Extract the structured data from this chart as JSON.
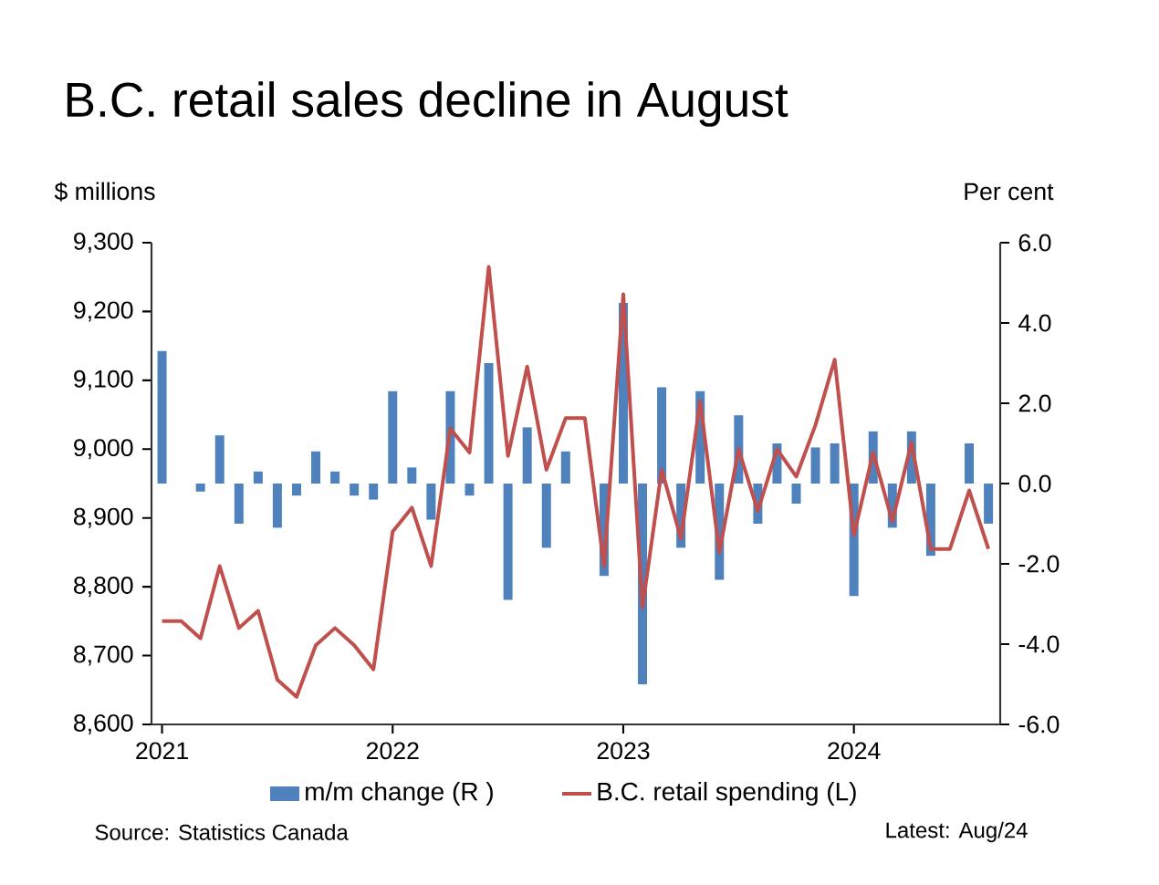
{
  "chart_data": {
    "type": "line",
    "title": "B.C. retail sales decline in August",
    "ylabel": "$ millions",
    "y2label": "Per cent",
    "annotations": [
      "Source: Statistics Canada",
      "Latest: Aug/24"
    ],
    "x": [
      "2021-01",
      "2021-02",
      "2021-03",
      "2021-04",
      "2021-05",
      "2021-06",
      "2021-07",
      "2021-08",
      "2021-09",
      "2021-10",
      "2021-11",
      "2021-12",
      "2022-01",
      "2022-02",
      "2022-03",
      "2022-04",
      "2022-05",
      "2022-06",
      "2022-07",
      "2022-08",
      "2022-09",
      "2022-10",
      "2022-11",
      "2022-12",
      "2023-01",
      "2023-02",
      "2023-03",
      "2023-04",
      "2023-05",
      "2023-06",
      "2023-07",
      "2023-08",
      "2023-09",
      "2023-10",
      "2023-11",
      "2023-12",
      "2024-01",
      "2024-02",
      "2024-03",
      "2024-04",
      "2024-05",
      "2024-06",
      "2024-07",
      "2024-08"
    ],
    "series": [
      {
        "name": "m/m change (R )",
        "type": "bar",
        "axis": "y2",
        "color": "#4f81bd",
        "values": [
          3.3,
          0.0,
          -0.2,
          1.2,
          -1.0,
          0.3,
          -1.1,
          -0.3,
          0.8,
          0.3,
          -0.3,
          -0.4,
          2.3,
          0.4,
          -0.9,
          2.3,
          -0.3,
          3.0,
          -2.9,
          1.4,
          -1.6,
          0.8,
          0.0,
          -2.3,
          4.5,
          -5.0,
          2.4,
          -1.6,
          2.3,
          -2.4,
          1.7,
          -1.0,
          1.0,
          -0.5,
          0.9,
          1.0,
          -2.8,
          1.3,
          -1.1,
          1.3,
          -1.8,
          0.0,
          1.0,
          -1.0
        ]
      },
      {
        "name": "B.C. retail spending (L)",
        "color": "#c0504d",
        "values": [
          8750,
          8750,
          8725,
          8830,
          8740,
          8765,
          8665,
          8640,
          8715,
          8740,
          8715,
          8680,
          8880,
          8915,
          8830,
          9030,
          8995,
          9265,
          8990,
          9120,
          8970,
          9045,
          9045,
          8830,
          9225,
          8770,
          8970,
          8870,
          9070,
          8850,
          9000,
          8910,
          9000,
          8960,
          9035,
          9130,
          8875,
          8995,
          8895,
          9010,
          8855,
          8855,
          8940,
          8855
        ]
      }
    ],
    "xlim": [
      "2020-12-15",
      "2024-08-20"
    ],
    "xticks": [
      {
        "value": "2021-01",
        "label": "2021"
      },
      {
        "value": "2022-01",
        "label": "2022"
      },
      {
        "value": "2023-01",
        "label": "2023"
      },
      {
        "value": "2024-01",
        "label": "2024"
      }
    ],
    "ylim": [
      8600,
      9300
    ],
    "yticks": [
      {
        "value": 8600,
        "label": "8,600"
      },
      {
        "value": 8700,
        "label": "8,700"
      },
      {
        "value": 8800,
        "label": "8,800"
      },
      {
        "value": 8900,
        "label": "8,900"
      },
      {
        "value": 9000,
        "label": "9,000"
      },
      {
        "value": 9100,
        "label": "9,100"
      },
      {
        "value": 9200,
        "label": "9,200"
      },
      {
        "value": 9300,
        "label": "9,300"
      }
    ],
    "y2lim": [
      -6,
      6
    ],
    "y2ticks": [
      {
        "value": -6,
        "label": "-6.0"
      },
      {
        "value": -4,
        "label": "-4.0"
      },
      {
        "value": -2,
        "label": "-2.0"
      },
      {
        "value": 0,
        "label": "0.0"
      },
      {
        "value": 2,
        "label": "2.0"
      },
      {
        "value": 4,
        "label": "4.0"
      },
      {
        "value": 6,
        "label": "6.0"
      }
    ],
    "legend": "bottom"
  }
}
